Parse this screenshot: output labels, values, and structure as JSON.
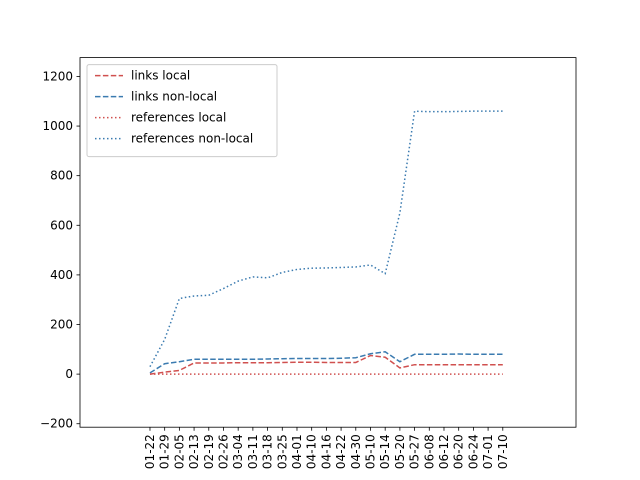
{
  "chart_data": {
    "type": "line",
    "categories": [
      "01-22",
      "01-29",
      "02-05",
      "02-13",
      "02-19",
      "02-26",
      "03-04",
      "03-11",
      "03-18",
      "03-25",
      "04-01",
      "04-10",
      "04-16",
      "04-22",
      "04-30",
      "05-10",
      "05-14",
      "05-20",
      "05-27",
      "06-08",
      "06-12",
      "06-20",
      "06-24",
      "07-01",
      "07-10"
    ],
    "series": [
      {
        "name": "links local",
        "color": "#d0504f",
        "style": "dashed",
        "values": [
          0,
          8,
          15,
          45,
          45,
          45,
          46,
          46,
          46,
          47,
          48,
          48,
          47,
          47,
          47,
          75,
          68,
          25,
          38,
          38,
          38,
          38,
          38,
          38,
          38
        ]
      },
      {
        "name": "links non-local",
        "color": "#3b7bb0",
        "style": "dashed",
        "values": [
          5,
          42,
          50,
          60,
          60,
          60,
          60,
          60,
          61,
          62,
          63,
          63,
          63,
          64,
          66,
          82,
          90,
          50,
          80,
          80,
          80,
          81,
          80,
          80,
          80
        ]
      },
      {
        "name": "references local",
        "color": "#d0504f",
        "style": "dotted",
        "values": [
          0,
          0,
          0,
          0,
          0,
          0,
          0,
          0,
          0,
          0,
          0,
          0,
          0,
          0,
          0,
          0,
          0,
          0,
          0,
          0,
          0,
          0,
          0,
          0,
          0
        ]
      },
      {
        "name": "references non-local",
        "color": "#3b7bb0",
        "style": "dotted",
        "values": [
          30,
          140,
          305,
          315,
          318,
          345,
          375,
          392,
          388,
          410,
          422,
          427,
          428,
          430,
          432,
          440,
          405,
          650,
          1060,
          1058,
          1058,
          1059,
          1060,
          1060,
          1060
        ]
      }
    ],
    "xlim": [
      -4.76,
      28.98
    ],
    "ylim": [
      -214,
      1276
    ],
    "yticks": [
      {
        "value": -200,
        "label": "−200"
      },
      0,
      200,
      400,
      600,
      800,
      1000,
      1200
    ],
    "legend": "upper left"
  }
}
